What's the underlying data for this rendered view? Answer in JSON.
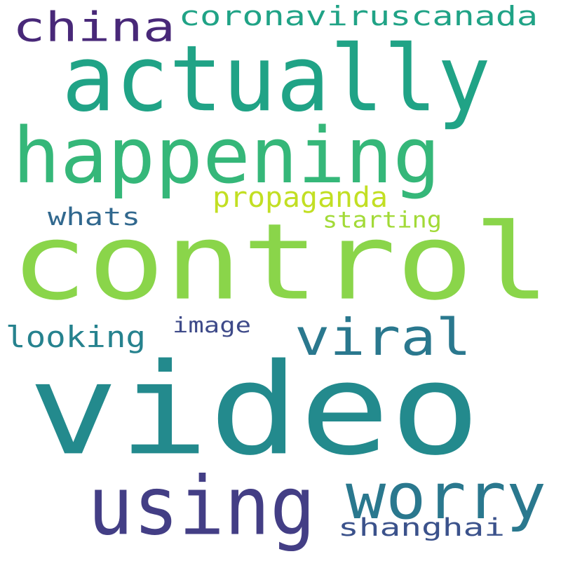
{
  "background_color": "#ffffff",
  "words": [
    {
      "id": "video",
      "text": "video",
      "color": "#238a8d"
    },
    {
      "id": "control",
      "text": "control",
      "color": "#8ad54a"
    },
    {
      "id": "actually",
      "text": "actually",
      "color": "#20a386"
    },
    {
      "id": "happening",
      "text": "happening",
      "color": "#35b779"
    },
    {
      "id": "using",
      "text": "using",
      "color": "#433e85"
    },
    {
      "id": "worry",
      "text": "worry",
      "color": "#2a788e"
    },
    {
      "id": "china",
      "text": "china",
      "color": "#482878"
    },
    {
      "id": "viral",
      "text": "viral",
      "color": "#2a788e"
    },
    {
      "id": "coronaviruscanada",
      "text": "coronaviruscanada",
      "color": "#20a386"
    },
    {
      "id": "shanghai",
      "text": "shanghai",
      "color": "#3b528b"
    },
    {
      "id": "looking",
      "text": "looking",
      "color": "#26828e"
    },
    {
      "id": "propaganda",
      "text": "propaganda",
      "color": "#c2df23"
    },
    {
      "id": "whats",
      "text": "whats",
      "color": "#31688e"
    },
    {
      "id": "starting",
      "text": "starting",
      "color": "#a2da37"
    },
    {
      "id": "image",
      "text": "image",
      "color": "#3e4a89"
    }
  ]
}
